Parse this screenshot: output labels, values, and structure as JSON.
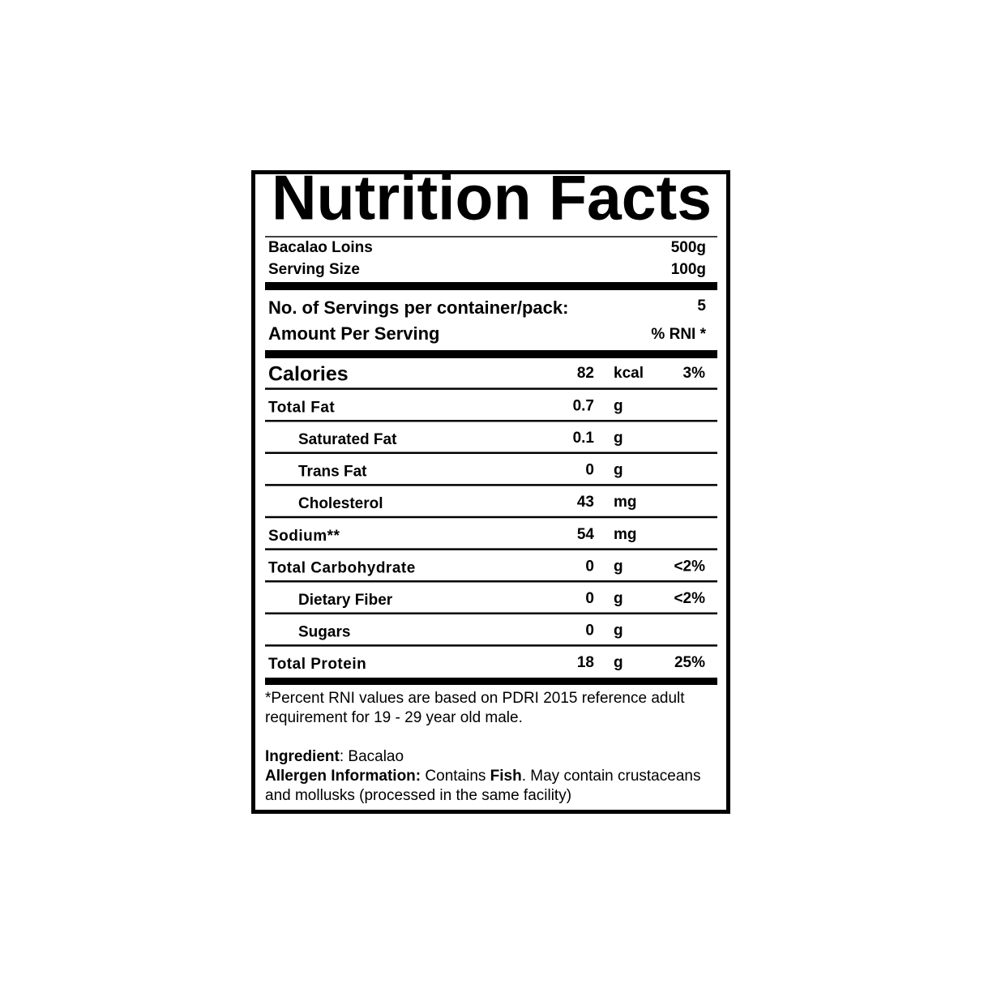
{
  "title": "Nutrition Facts",
  "product": {
    "name": "Bacalao Loins",
    "net_weight": "500g"
  },
  "serving_size": {
    "label": "Serving Size",
    "value": "100g"
  },
  "servings": {
    "label": "No. of Servings per container/pack:",
    "value": 5
  },
  "amount_header": {
    "label": "Amount Per Serving",
    "rni_label": "% RNI *"
  },
  "nutrients": [
    {
      "name": "Calories",
      "amount": 82,
      "unit": "kcal",
      "rni": "3%"
    },
    {
      "name": "Total Fat",
      "amount": 0.7,
      "unit": "g"
    },
    {
      "name": "Saturated Fat",
      "amount": 0.1,
      "unit": "g"
    },
    {
      "name": "Trans Fat",
      "amount": 0,
      "unit": "g"
    },
    {
      "name": "Cholesterol",
      "amount": 43,
      "unit": "mg"
    },
    {
      "name": "Sodium**",
      "amount": 54,
      "unit": "mg"
    },
    {
      "name": "Total Carbohydrate",
      "amount": 0,
      "unit": "g",
      "rni": "<2%"
    },
    {
      "name": "Dietary Fiber",
      "amount": 0,
      "unit": "g",
      "rni": "<2%"
    },
    {
      "name": "Sugars",
      "amount": 0,
      "unit": "g"
    },
    {
      "name": "Total Protein",
      "amount": 18,
      "unit": "g",
      "rni": "25%"
    }
  ],
  "footnote": [
    "*Percent RNI values are based on PDRI 2015 reference adult",
    "requirement for 19 - 29 year old male."
  ],
  "ingredient": {
    "label": "Ingredient",
    "text": ": Bacalao"
  },
  "allergen": {
    "label": "Allergen Information:",
    "text_before": " Contains ",
    "allergen": "Fish",
    "text_after": ". May contain crustaceans",
    "text_line2": "and mollusks (processed in the same facility)"
  }
}
